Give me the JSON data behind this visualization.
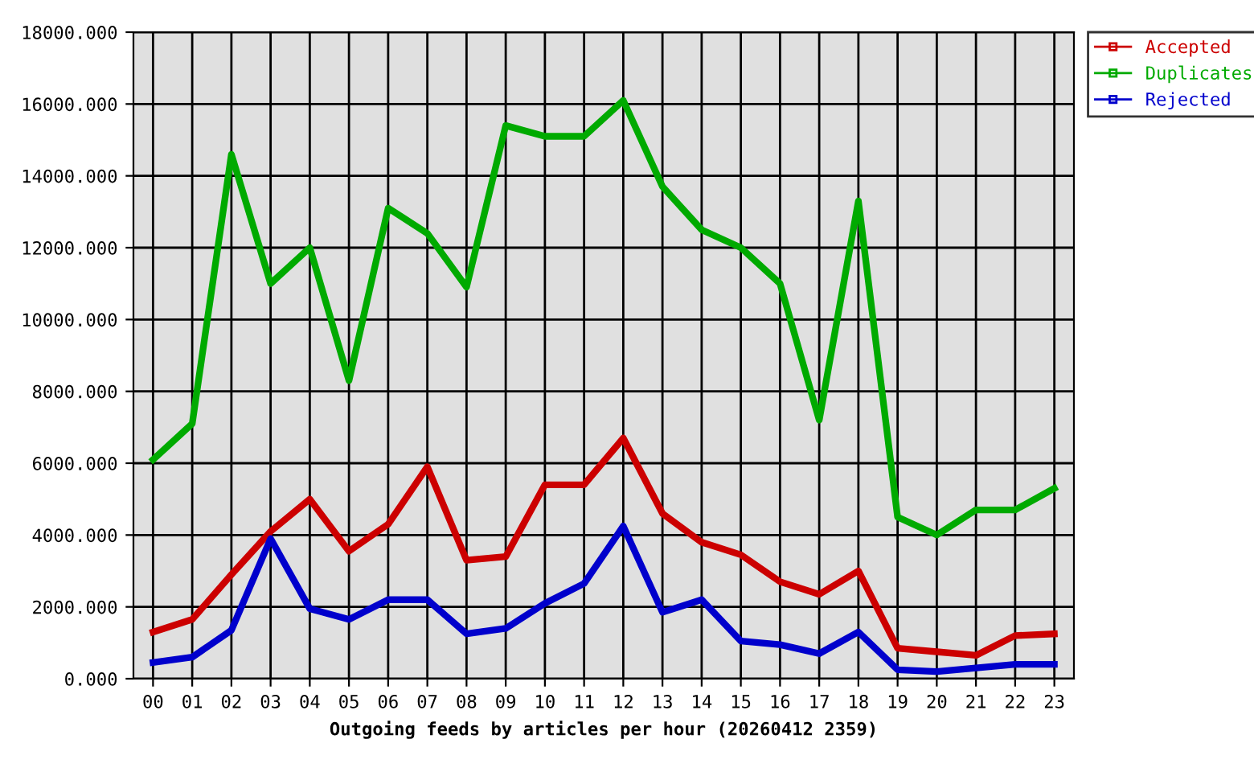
{
  "chart_data": {
    "type": "line",
    "xlabel": "Outgoing feeds by articles per hour (20260412 2359)",
    "categories": [
      "00",
      "01",
      "02",
      "03",
      "04",
      "05",
      "06",
      "07",
      "08",
      "09",
      "10",
      "11",
      "12",
      "13",
      "14",
      "15",
      "16",
      "17",
      "18",
      "19",
      "20",
      "21",
      "22",
      "23"
    ],
    "series": [
      {
        "name": "Accepted",
        "color": "#cc0000",
        "values": [
          1300,
          1650,
          2900,
          4100,
          5000,
          3550,
          4300,
          5900,
          3300,
          3400,
          5400,
          5400,
          6700,
          4600,
          3800,
          3450,
          2700,
          2350,
          3000,
          850,
          750,
          650,
          1200,
          1250
        ]
      },
      {
        "name": "Duplicates",
        "color": "#00aa00",
        "values": [
          6100,
          7100,
          14600,
          11000,
          12000,
          8300,
          13100,
          12400,
          10900,
          15400,
          15100,
          15100,
          16100,
          13700,
          12500,
          12000,
          11000,
          7200,
          13300,
          4500,
          4000,
          4700,
          4700,
          5300
        ]
      },
      {
        "name": "Rejected",
        "color": "#0000cc",
        "values": [
          450,
          600,
          1350,
          3900,
          1950,
          1650,
          2200,
          2200,
          1250,
          1400,
          2100,
          2650,
          4250,
          1850,
          2200,
          1050,
          950,
          700,
          1300,
          250,
          200,
          300,
          400,
          400
        ]
      }
    ],
    "ylim": [
      0,
      18000
    ],
    "yticks": [
      {
        "value": 0,
        "label": "0.000"
      },
      {
        "value": 2000,
        "label": "2000.000"
      },
      {
        "value": 4000,
        "label": "4000.000"
      },
      {
        "value": 6000,
        "label": "6000.000"
      },
      {
        "value": 8000,
        "label": "8000.000"
      },
      {
        "value": 10000,
        "label": "10000.000"
      },
      {
        "value": 12000,
        "label": "12000.000"
      },
      {
        "value": 14000,
        "label": "14000.000"
      },
      {
        "value": 16000,
        "label": "16000.000"
      },
      {
        "value": 18000,
        "label": "18000.000"
      }
    ],
    "grid": true,
    "legend": "top right",
    "marker": "none",
    "line_style": "solid"
  }
}
